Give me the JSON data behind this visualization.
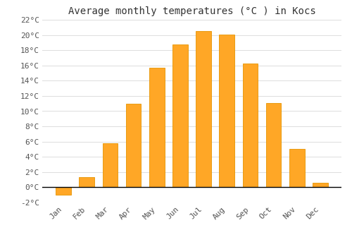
{
  "title": "Average monthly temperatures (°C ) in Kocs",
  "months": [
    "Jan",
    "Feb",
    "Mar",
    "Apr",
    "May",
    "Jun",
    "Jul",
    "Aug",
    "Sep",
    "Oct",
    "Nov",
    "Dec"
  ],
  "values": [
    -1.0,
    1.3,
    5.8,
    11.0,
    15.7,
    18.8,
    20.5,
    20.1,
    16.3,
    11.1,
    5.0,
    0.6
  ],
  "bar_color": "#FFA726",
  "bar_edge_color": "#E59400",
  "background_color": "#FFFFFF",
  "ylim": [
    -2,
    22
  ],
  "yticks": [
    -2,
    0,
    2,
    4,
    6,
    8,
    10,
    12,
    14,
    16,
    18,
    20,
    22
  ],
  "ytick_labels": [
    "-2°C",
    "0°C",
    "2°C",
    "4°C",
    "6°C",
    "8°C",
    "10°C",
    "12°C",
    "14°C",
    "16°C",
    "18°C",
    "20°C",
    "22°C"
  ],
  "grid_color": "#DDDDDD",
  "title_fontsize": 10,
  "tick_fontsize": 8
}
